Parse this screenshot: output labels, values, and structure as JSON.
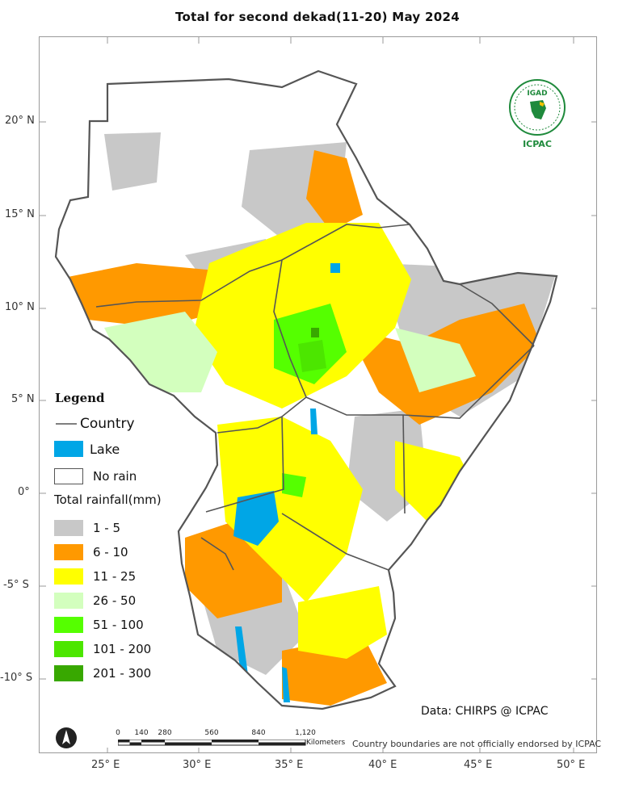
{
  "map": {
    "title": "Total  for second dekad(11-20) May 2024",
    "latitude_labels": [
      "20° N",
      "15° N",
      "10° N",
      "5° N",
      "0°",
      "-5° S",
      "-10° S"
    ],
    "longitude_labels": [
      "25° E",
      "30° E",
      "35° E",
      "40° E",
      "45° E",
      "50° E"
    ],
    "source": "Data: CHIRPS @ ICPAC",
    "disclaimer": "Country boundaries are not officially endorsed by ICPAC",
    "logo": {
      "name": "IGAD",
      "caption": "ICPAC"
    }
  },
  "scale_bar": {
    "ticks": [
      "0",
      "140",
      "280",
      "560",
      "840",
      "1,120"
    ],
    "unit": "Kilometers"
  },
  "legend": {
    "title": "Legend",
    "country_label": "Country",
    "lake_label": "Lake",
    "no_rain_label": "No rain",
    "rainfall_heading": "Total rainfall(mm)",
    "classes": [
      {
        "label": "1 - 5",
        "color": "#c8c8c8"
      },
      {
        "label": "6 - 10",
        "color": "#ff9900"
      },
      {
        "label": "11 - 25",
        "color": "#ffff00"
      },
      {
        "label": "26 - 50",
        "color": "#d3ffbe"
      },
      {
        "label": "51 - 100",
        "color": "#55ff00"
      },
      {
        "label": "101 - 200",
        "color": "#4ce600"
      },
      {
        "label": "201 - 300",
        "color": "#38a800"
      }
    ],
    "lake_color": "#00a6e6",
    "border_color": "#555555"
  }
}
